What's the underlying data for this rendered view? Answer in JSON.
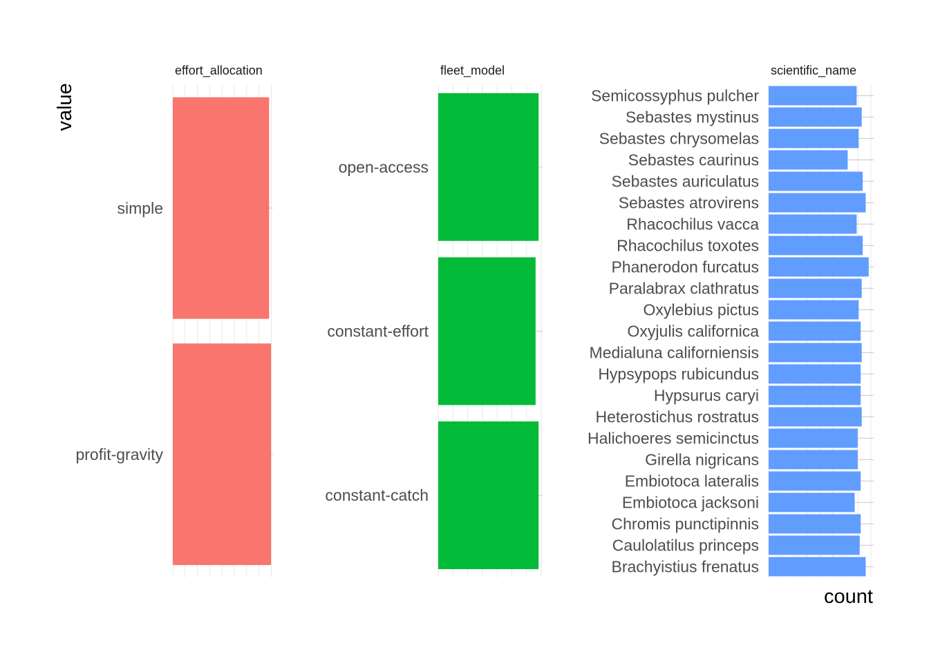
{
  "chart_data": {
    "type": "bar",
    "orientation": "horizontal",
    "facet_layout": "three facets in one row, free y scales",
    "grid": true,
    "legend": "none",
    "ylabel": "value",
    "xlabel": "count",
    "facets": [
      {
        "strip": "effort_allocation",
        "color": "#F8766D",
        "categories": [
          "simple",
          "profit-gravity"
        ],
        "values": [
          0.98,
          1.0
        ],
        "xlim": [
          0,
          1.02
        ]
      },
      {
        "strip": "fleet_model",
        "color": "#00BA38",
        "categories": [
          "open-access",
          "constant-effort",
          "constant-catch"
        ],
        "values": [
          1.0,
          0.97,
          1.0
        ],
        "xlim": [
          0,
          1.04
        ]
      },
      {
        "strip": "scientific_name",
        "color": "#619CFF",
        "categories": [
          "Semicossyphus pulcher",
          "Sebastes mystinus",
          "Sebastes chrysomelas",
          "Sebastes caurinus",
          "Sebastes auriculatus",
          "Sebastes atrovirens",
          "Rhacochilus vacca",
          "Rhacochilus toxotes",
          "Phanerodon furcatus",
          "Paralabrax clathratus",
          "Oxylebius pictus",
          "Oxyjulis californica",
          "Medialuna californiensis",
          "Hypsypops rubicundus",
          "Hypsurus caryi",
          "Heterostichus rostratus",
          "Halichoeres semicinctus",
          "Girella nigricans",
          "Embiotoca lateralis",
          "Embiotoca jacksoni",
          "Chromis punctipinnis",
          "Caulolatilus princeps",
          "Brachyistius frenatus"
        ],
        "values": [
          0.88,
          0.93,
          0.9,
          0.79,
          0.94,
          0.97,
          0.88,
          0.94,
          1.0,
          0.93,
          0.9,
          0.92,
          0.93,
          0.92,
          0.92,
          0.93,
          0.89,
          0.89,
          0.92,
          0.86,
          0.92,
          0.91,
          0.97
        ],
        "xlim": [
          0,
          1.05
        ]
      }
    ]
  }
}
